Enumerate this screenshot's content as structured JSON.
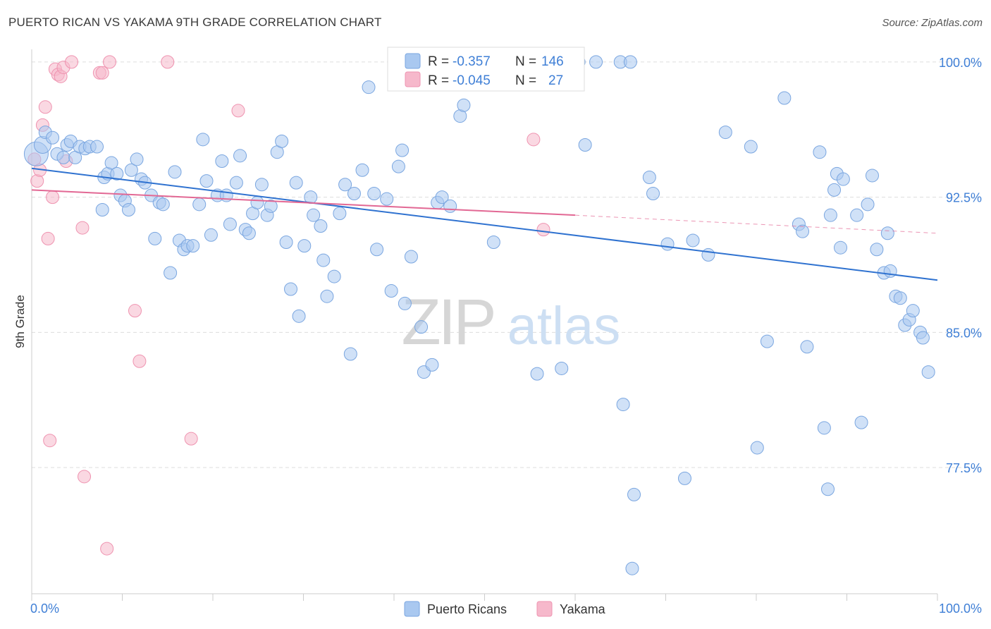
{
  "header": {
    "title": "PUERTO RICAN VS YAKAMA 9TH GRADE CORRELATION CHART",
    "source": "Source: ZipAtlas.com"
  },
  "watermark": {
    "zip": "ZIP",
    "atlas": "atlas"
  },
  "colors": {
    "blue_fill": "#a9c8f0",
    "blue_stroke": "#7aa6e0",
    "blue_line": "#2f72d0",
    "pink_fill": "#f6b8cb",
    "pink_stroke": "#ef93b0",
    "pink_line": "#e26894",
    "tick_text": "#3f7fd6",
    "grid": "#dddddd"
  },
  "legend": {
    "rows": [
      {
        "r_label": "R =",
        "r_value": "-0.357",
        "n_label": "N =",
        "n_value": "146"
      },
      {
        "r_label": "R =",
        "r_value": "-0.045",
        "n_label": "N =",
        "n_value": "27"
      }
    ]
  },
  "bottom_legend": [
    "Puerto Ricans",
    "Yakama"
  ],
  "chart_data": {
    "type": "scatter",
    "title": "PUERTO RICAN VS YAKAMA 9TH GRADE CORRELATION CHART",
    "xlabel": "",
    "ylabel": "9th Grade",
    "xlim": [
      0,
      100
    ],
    "ylim": [
      70.5,
      100.7
    ],
    "x_tick_labels": [
      "0.0%",
      "100.0%"
    ],
    "y_ticks": [
      100.0,
      92.5,
      85.0,
      77.5
    ],
    "y_tick_labels": [
      "100.0%",
      "92.5%",
      "85.0%",
      "77.5%"
    ],
    "grid": true,
    "legend_position": "top-center",
    "series": [
      {
        "name": "Puerto Ricans",
        "R": -0.357,
        "N": 146,
        "trend": {
          "x": [
            0,
            100
          ],
          "y": [
            94.1,
            87.9
          ]
        },
        "points": [
          [
            0.5,
            94.9
          ],
          [
            1.2,
            95.4
          ],
          [
            1.5,
            96.1
          ],
          [
            2.3,
            95.8
          ],
          [
            2.8,
            94.9
          ],
          [
            3.5,
            94.7
          ],
          [
            3.9,
            95.4
          ],
          [
            4.3,
            95.6
          ],
          [
            4.8,
            94.7
          ],
          [
            5.3,
            95.3
          ],
          [
            5.9,
            95.2
          ],
          [
            6.4,
            95.3
          ],
          [
            7.2,
            95.3
          ],
          [
            7.8,
            91.8
          ],
          [
            8.0,
            93.6
          ],
          [
            8.4,
            93.8
          ],
          [
            8.8,
            94.4
          ],
          [
            9.4,
            93.8
          ],
          [
            9.8,
            92.6
          ],
          [
            10.3,
            92.3
          ],
          [
            10.7,
            91.8
          ],
          [
            11.0,
            94.0
          ],
          [
            11.6,
            94.6
          ],
          [
            12.1,
            93.5
          ],
          [
            12.5,
            93.3
          ],
          [
            13.2,
            92.6
          ],
          [
            13.6,
            90.2
          ],
          [
            14.1,
            92.2
          ],
          [
            14.5,
            92.1
          ],
          [
            15.3,
            88.3
          ],
          [
            15.8,
            93.9
          ],
          [
            16.3,
            90.1
          ],
          [
            16.8,
            89.6
          ],
          [
            17.2,
            89.8
          ],
          [
            17.8,
            89.8
          ],
          [
            18.5,
            92.1
          ],
          [
            18.9,
            95.7
          ],
          [
            19.3,
            93.4
          ],
          [
            19.8,
            90.4
          ],
          [
            20.5,
            92.6
          ],
          [
            21.0,
            94.5
          ],
          [
            21.5,
            92.6
          ],
          [
            21.9,
            91.0
          ],
          [
            22.6,
            93.3
          ],
          [
            23.0,
            94.8
          ],
          [
            23.6,
            90.7
          ],
          [
            24.0,
            90.5
          ],
          [
            24.4,
            91.6
          ],
          [
            24.9,
            92.2
          ],
          [
            25.4,
            93.2
          ],
          [
            26.0,
            91.5
          ],
          [
            26.4,
            92.0
          ],
          [
            27.1,
            95.0
          ],
          [
            27.6,
            95.6
          ],
          [
            28.1,
            90.0
          ],
          [
            28.6,
            87.4
          ],
          [
            29.2,
            93.3
          ],
          [
            29.5,
            85.9
          ],
          [
            30.1,
            89.8
          ],
          [
            30.8,
            92.5
          ],
          [
            31.1,
            91.5
          ],
          [
            31.9,
            90.9
          ],
          [
            32.2,
            89.0
          ],
          [
            32.6,
            87.0
          ],
          [
            33.4,
            88.1
          ],
          [
            34.0,
            91.6
          ],
          [
            34.6,
            93.2
          ],
          [
            35.2,
            83.8
          ],
          [
            35.6,
            92.7
          ],
          [
            36.5,
            94.0
          ],
          [
            37.2,
            98.6
          ],
          [
            37.8,
            92.7
          ],
          [
            38.1,
            89.6
          ],
          [
            39.2,
            92.4
          ],
          [
            39.7,
            87.3
          ],
          [
            40.5,
            94.2
          ],
          [
            40.9,
            95.1
          ],
          [
            41.2,
            86.6
          ],
          [
            41.9,
            89.2
          ],
          [
            43.0,
            85.3
          ],
          [
            43.3,
            82.8
          ],
          [
            44.2,
            83.2
          ],
          [
            44.8,
            92.2
          ],
          [
            45.3,
            92.5
          ],
          [
            46.2,
            92.0
          ],
          [
            47.3,
            97.0
          ],
          [
            47.7,
            97.6
          ],
          [
            48.6,
            100.0
          ],
          [
            49.2,
            100.0
          ],
          [
            51.0,
            90.0
          ],
          [
            53.4,
            100.0
          ],
          [
            55.8,
            82.7
          ],
          [
            58.5,
            83.0
          ],
          [
            59.1,
            100.0
          ],
          [
            60.4,
            100.0
          ],
          [
            61.1,
            95.4
          ],
          [
            62.3,
            100.0
          ],
          [
            65.0,
            100.0
          ],
          [
            66.1,
            100.0
          ],
          [
            65.3,
            81.0
          ],
          [
            66.5,
            76.0
          ],
          [
            66.3,
            71.9
          ],
          [
            68.2,
            93.6
          ],
          [
            68.6,
            92.7
          ],
          [
            70.2,
            89.9
          ],
          [
            72.1,
            76.9
          ],
          [
            73.0,
            90.1
          ],
          [
            74.7,
            89.3
          ],
          [
            76.6,
            96.1
          ],
          [
            79.4,
            95.3
          ],
          [
            80.1,
            78.6
          ],
          [
            81.2,
            84.5
          ],
          [
            83.1,
            98.0
          ],
          [
            84.7,
            91.0
          ],
          [
            85.1,
            90.6
          ],
          [
            85.6,
            84.2
          ],
          [
            87.0,
            95.0
          ],
          [
            87.5,
            79.7
          ],
          [
            87.9,
            76.3
          ],
          [
            88.2,
            91.5
          ],
          [
            88.6,
            92.9
          ],
          [
            88.9,
            93.8
          ],
          [
            89.3,
            89.7
          ],
          [
            89.6,
            93.5
          ],
          [
            91.1,
            91.5
          ],
          [
            91.6,
            80.0
          ],
          [
            92.3,
            92.1
          ],
          [
            92.8,
            93.7
          ],
          [
            93.3,
            89.6
          ],
          [
            94.1,
            88.3
          ],
          [
            94.5,
            90.5
          ],
          [
            94.8,
            88.4
          ],
          [
            95.4,
            87.0
          ],
          [
            95.9,
            86.9
          ],
          [
            96.4,
            85.4
          ],
          [
            96.9,
            85.7
          ],
          [
            97.3,
            86.2
          ],
          [
            98.1,
            85.0
          ],
          [
            98.4,
            84.7
          ],
          [
            99.0,
            82.8
          ]
        ]
      },
      {
        "name": "Yakama",
        "R": -0.045,
        "N": 27,
        "trend": {
          "x": [
            0,
            60
          ],
          "y": [
            92.9,
            91.5
          ]
        },
        "trend_extension": {
          "x": [
            60,
            100
          ],
          "y": [
            91.5,
            90.5
          ]
        },
        "points": [
          [
            0.3,
            94.6
          ],
          [
            0.6,
            93.4
          ],
          [
            0.9,
            94.0
          ],
          [
            1.2,
            96.5
          ],
          [
            1.5,
            97.5
          ],
          [
            1.8,
            90.2
          ],
          [
            2.0,
            79.0
          ],
          [
            2.3,
            92.5
          ],
          [
            2.6,
            99.6
          ],
          [
            2.9,
            99.3
          ],
          [
            3.2,
            99.2
          ],
          [
            3.5,
            99.7
          ],
          [
            3.8,
            94.5
          ],
          [
            4.4,
            100.0
          ],
          [
            5.6,
            90.8
          ],
          [
            5.8,
            77.0
          ],
          [
            7.5,
            99.4
          ],
          [
            7.8,
            99.4
          ],
          [
            8.3,
            73.0
          ],
          [
            8.6,
            100.0
          ],
          [
            11.4,
            86.2
          ],
          [
            11.9,
            83.4
          ],
          [
            15.0,
            100.0
          ],
          [
            17.6,
            79.1
          ],
          [
            22.8,
            97.3
          ],
          [
            55.4,
            95.7
          ],
          [
            56.5,
            90.7
          ]
        ]
      }
    ]
  }
}
